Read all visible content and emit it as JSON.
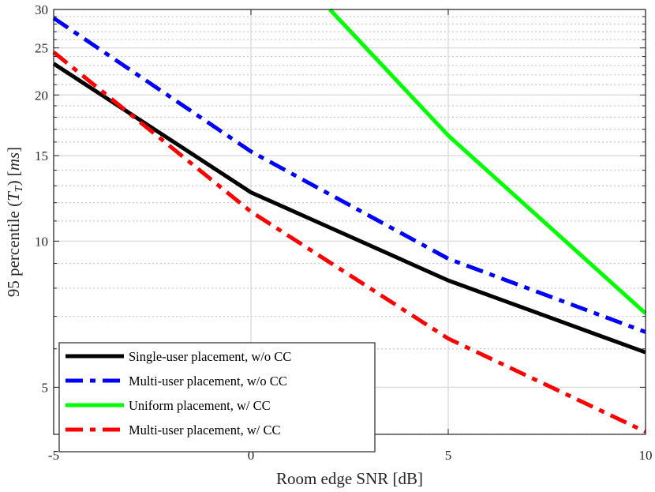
{
  "chart_data": {
    "type": "line",
    "title": "",
    "xlabel": "Room edge SNR [dB]",
    "ylabel": "95 percentile (T_T) [ms]",
    "ylabel_parts": {
      "main": "95 percentile (",
      "var": "T",
      "sub": "T",
      "mid": ") [",
      "unit": "ms",
      "end": "]"
    },
    "xlim": [
      -5,
      10
    ],
    "ylim": [
      4.0,
      30
    ],
    "yscale": "log",
    "xticks": [
      -5,
      0,
      5,
      10
    ],
    "xtick_labels": [
      "-5",
      "0",
      "5",
      "10"
    ],
    "yticks": [
      5,
      10,
      15,
      20,
      25,
      30
    ],
    "ytick_labels": [
      "5",
      "10",
      "15",
      "20",
      "25",
      "30"
    ],
    "grid": true,
    "legend_position": "bottom-left",
    "series": [
      {
        "name": "Single-user placement, w/o CC",
        "color": "#000000",
        "style": "solid",
        "x": [
          -5,
          0,
          5,
          10
        ],
        "y": [
          23.2,
          12.6,
          8.3,
          5.9
        ]
      },
      {
        "name": "Multi-user placement, w/o CC",
        "color": "#0000ff",
        "style": "dash-dot",
        "x": [
          -5,
          0,
          5,
          10
        ],
        "y": [
          28.8,
          15.3,
          9.2,
          6.5
        ]
      },
      {
        "name": "Uniform placement, w/ CC",
        "color": "#00ff00",
        "style": "solid",
        "x": [
          2,
          5,
          10
        ],
        "y": [
          30,
          16.5,
          7.1
        ]
      },
      {
        "name": "Multi-user placement, w/ CC",
        "color": "#ff0000",
        "style": "dash-dot",
        "x": [
          -5,
          0,
          5,
          10
        ],
        "y": [
          24.5,
          11.5,
          6.3,
          4.05
        ]
      }
    ]
  }
}
